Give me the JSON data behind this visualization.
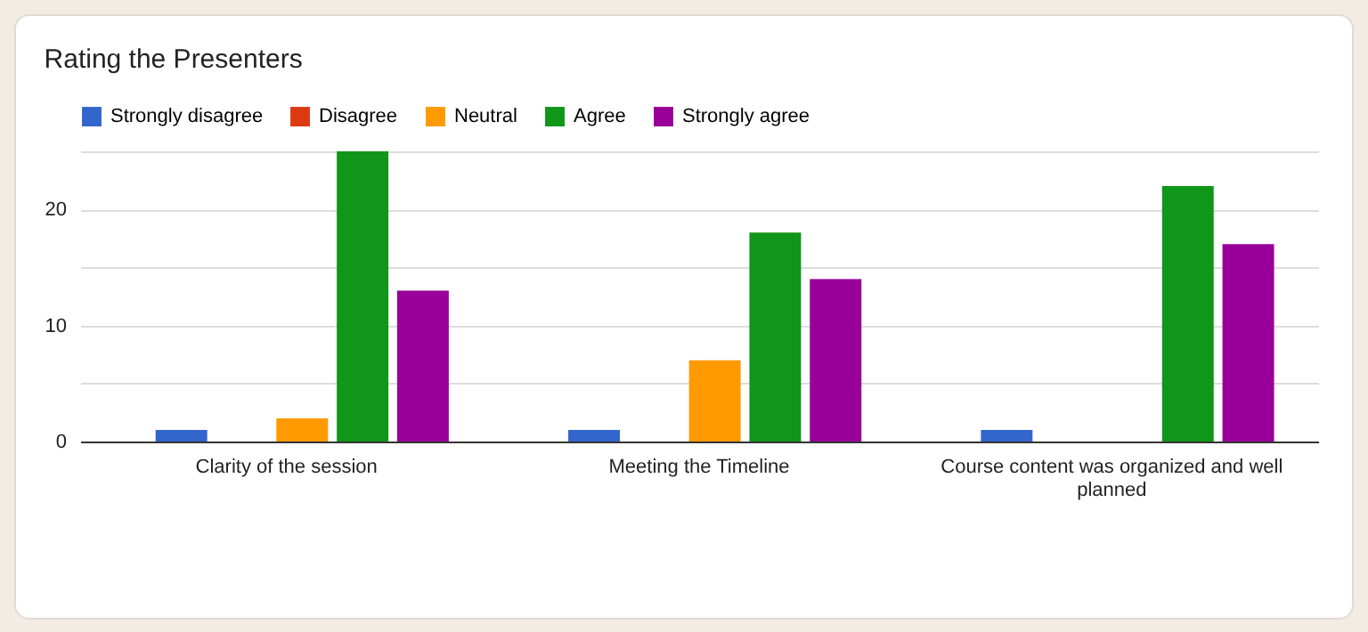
{
  "chart_data": {
    "type": "bar",
    "title": "Rating the Presenters",
    "categories": [
      "Clarity of the session",
      "Meeting the Timeline",
      "Course content was organized and well planned"
    ],
    "series": [
      {
        "name": "Strongly disagree",
        "color": "#3366cc",
        "values": [
          1,
          1,
          1
        ]
      },
      {
        "name": "Disagree",
        "color": "#dc3912",
        "values": [
          0,
          0,
          0
        ]
      },
      {
        "name": "Neutral",
        "color": "#ff9900",
        "values": [
          2,
          7,
          0
        ]
      },
      {
        "name": "Agree",
        "color": "#109618",
        "values": [
          25,
          18,
          22
        ]
      },
      {
        "name": "Strongly agree",
        "color": "#990099",
        "values": [
          13,
          14,
          17
        ]
      }
    ],
    "ylim": [
      0,
      25
    ],
    "yticks": [
      0,
      {
        "value": 5,
        "label": null
      },
      10,
      {
        "value": 15,
        "label": null
      },
      20,
      {
        "value": 25,
        "label": null
      }
    ],
    "grid": "y",
    "legend": "top"
  }
}
